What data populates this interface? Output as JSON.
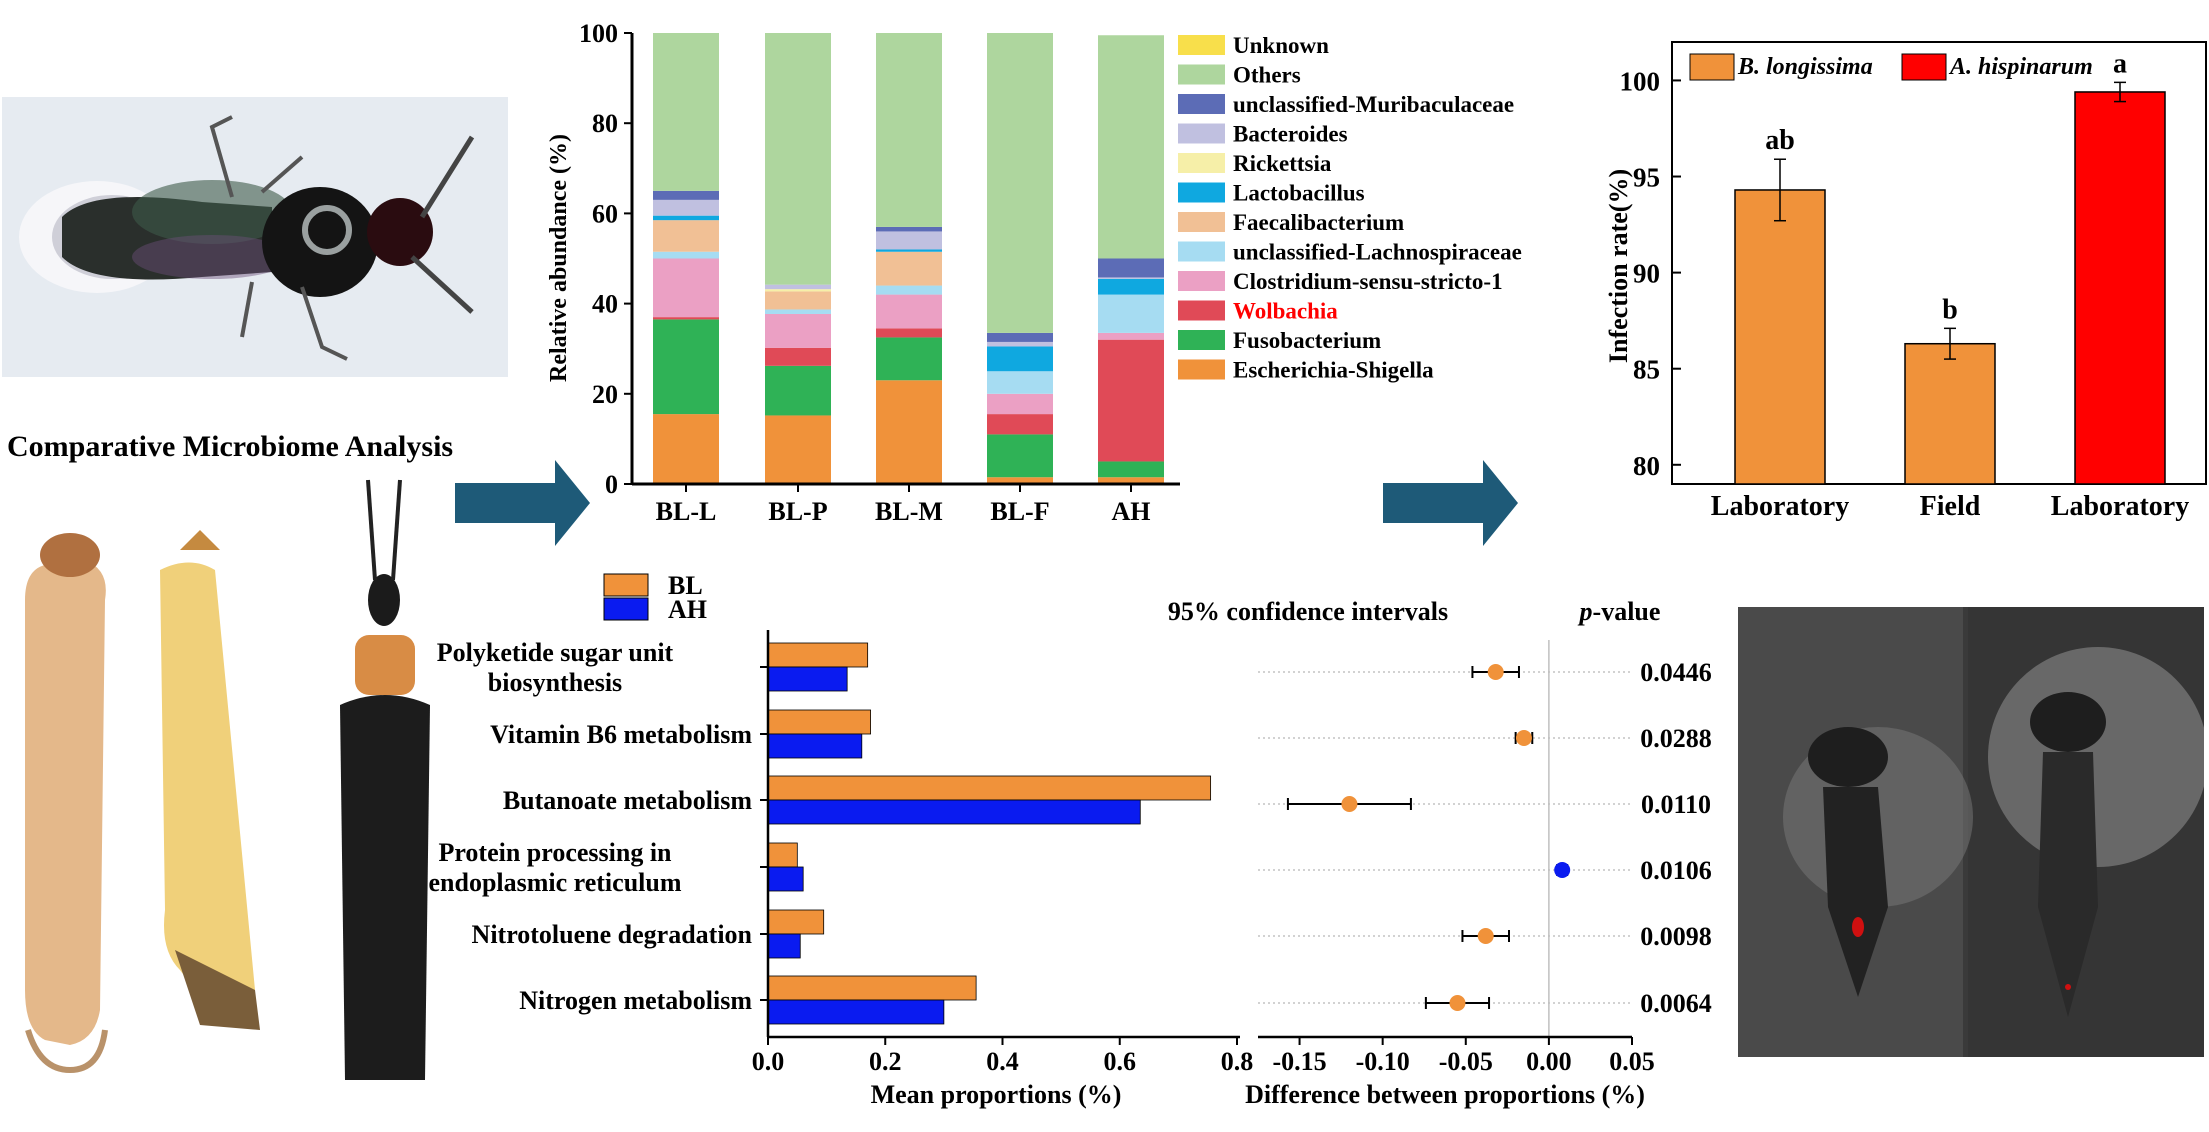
{
  "title": "Comparative Microbiome Analysis",
  "illustrations": {
    "wasp": "parasitoid wasp photo",
    "larvae": "beetle larva, pupa and adult photos",
    "fluorescence": "fluorescence microscopy photos of wasps"
  },
  "colors": {
    "arrow": "#1e5a78",
    "bl": "#f0923a",
    "ah_bar": "#0a1bf0",
    "ah_infection": "#ff0000"
  },
  "chart_data": [
    {
      "type": "bar",
      "stacked": true,
      "ylabel": "Relative abundance (%)",
      "ylim": [
        0,
        100
      ],
      "yticks": [
        0,
        20,
        40,
        60,
        80,
        100
      ],
      "categories": [
        "BL-L",
        "BL-P",
        "BL-M",
        "BL-F",
        "AH"
      ],
      "series": [
        {
          "name": "Escherichia-Shigella",
          "color": "#f0923a",
          "values": [
            15.5,
            15.2,
            23,
            1.5,
            1.5
          ]
        },
        {
          "name": "Fusobacterium",
          "color": "#2fb256",
          "values": [
            21,
            11,
            9.5,
            9.5,
            3.5
          ]
        },
        {
          "name": "Wolbachia",
          "color": "#e04a57",
          "highlight": true,
          "values": [
            0.5,
            4,
            2,
            4.5,
            27
          ]
        },
        {
          "name": "Clostridium-sensu-stricto-1",
          "color": "#eba0c4",
          "values": [
            13,
            7.5,
            7.5,
            4.5,
            1.5
          ]
        },
        {
          "name": "unclassified-Lachnospiraceae",
          "color": "#a6dcf2",
          "values": [
            1.5,
            1,
            2,
            5,
            8.5
          ]
        },
        {
          "name": "Faecalibacterium",
          "color": "#f1c095",
          "values": [
            7,
            4,
            7.5,
            0,
            0
          ]
        },
        {
          "name": "Lactobacillus",
          "color": "#0fa8e0",
          "values": [
            1,
            0,
            0.5,
            5.5,
            3.5
          ]
        },
        {
          "name": "Rickettsia",
          "color": "#f6efa8",
          "values": [
            0,
            0.5,
            0,
            0,
            0
          ]
        },
        {
          "name": "Bacteroides",
          "color": "#c0c0e0",
          "values": [
            3.5,
            1,
            4,
            1,
            0.3
          ]
        },
        {
          "name": "unclassified-Muribaculaceae",
          "color": "#5c6cb6",
          "values": [
            2,
            0,
            1,
            2,
            4.2
          ]
        },
        {
          "name": "Others",
          "color": "#aed69e",
          "values": [
            35,
            55.8,
            43,
            66.5,
            49.5
          ]
        },
        {
          "name": "Unknown",
          "color": "#f8df4b",
          "values": [
            0,
            0,
            0,
            0,
            0
          ]
        }
      ]
    },
    {
      "type": "bar",
      "ylabel": "Infection rate(%)",
      "ylim": [
        79,
        102
      ],
      "yticks": [
        80,
        85,
        90,
        95,
        100
      ],
      "categories": [
        "Laboratory",
        "Field",
        "Laboratory"
      ],
      "values": [
        94.3,
        86.3,
        99.4
      ],
      "errors": [
        1.6,
        0.8,
        0.5
      ],
      "letters": [
        "ab",
        "b",
        "a"
      ],
      "bar_species": [
        "B. longissima",
        "B. longissima",
        "A. hispinarum"
      ],
      "legend": [
        {
          "name": "B. longissima",
          "color": "#f0923a"
        },
        {
          "name": "A. hispinarum",
          "color": "#ff0000"
        }
      ]
    },
    {
      "type": "bar",
      "orientation": "horizontal",
      "xlabel": "Mean proportions (%)",
      "xlim": [
        0,
        0.8
      ],
      "xticks": [
        "0.0",
        "0.2",
        "0.4",
        "0.6",
        "0.8"
      ],
      "legend": [
        "BL",
        "AH"
      ],
      "categories": [
        [
          "Polyketide sugar unit",
          "biosynthesis"
        ],
        [
          "Vitamin B6 metabolism"
        ],
        [
          "Butanoate metabolism"
        ],
        [
          "Protein processing in",
          "endoplasmic reticulum"
        ],
        [
          "Nitrotoluene degradation"
        ],
        [
          "Nitrogen metabolism"
        ]
      ],
      "series": [
        {
          "name": "BL",
          "color": "#f0923a",
          "values": [
            0.17,
            0.175,
            0.755,
            0.05,
            0.095,
            0.355
          ]
        },
        {
          "name": "AH",
          "color": "#0a1bf0",
          "values": [
            0.135,
            0.16,
            0.635,
            0.06,
            0.055,
            0.3
          ]
        }
      ]
    },
    {
      "type": "scatter",
      "subtype": "confidence_interval",
      "title": "95% confidence intervals",
      "xlabel": "Difference between proportions (%)",
      "xlim": [
        -0.175,
        0.05
      ],
      "xticks": [
        "-0.15",
        "-0.10",
        "-0.05",
        "0.00",
        "0.05"
      ],
      "pvalue_header": [
        "p",
        "-value"
      ],
      "points": [
        {
          "diff": -0.032,
          "low": -0.046,
          "high": -0.018,
          "color": "#f0923a",
          "p": "0.0446"
        },
        {
          "diff": -0.015,
          "low": -0.02,
          "high": -0.01,
          "color": "#f0923a",
          "p": "0.0288"
        },
        {
          "diff": -0.12,
          "low": -0.157,
          "high": -0.083,
          "color": "#f0923a",
          "p": "0.0110"
        },
        {
          "diff": 0.008,
          "low": 0.005,
          "high": 0.011,
          "color": "#0a1bf0",
          "p": "0.0106"
        },
        {
          "diff": -0.038,
          "low": -0.052,
          "high": -0.024,
          "color": "#f0923a",
          "p": "0.0098"
        },
        {
          "diff": -0.055,
          "low": -0.074,
          "high": -0.036,
          "color": "#f0923a",
          "p": "0.0064"
        }
      ]
    }
  ]
}
